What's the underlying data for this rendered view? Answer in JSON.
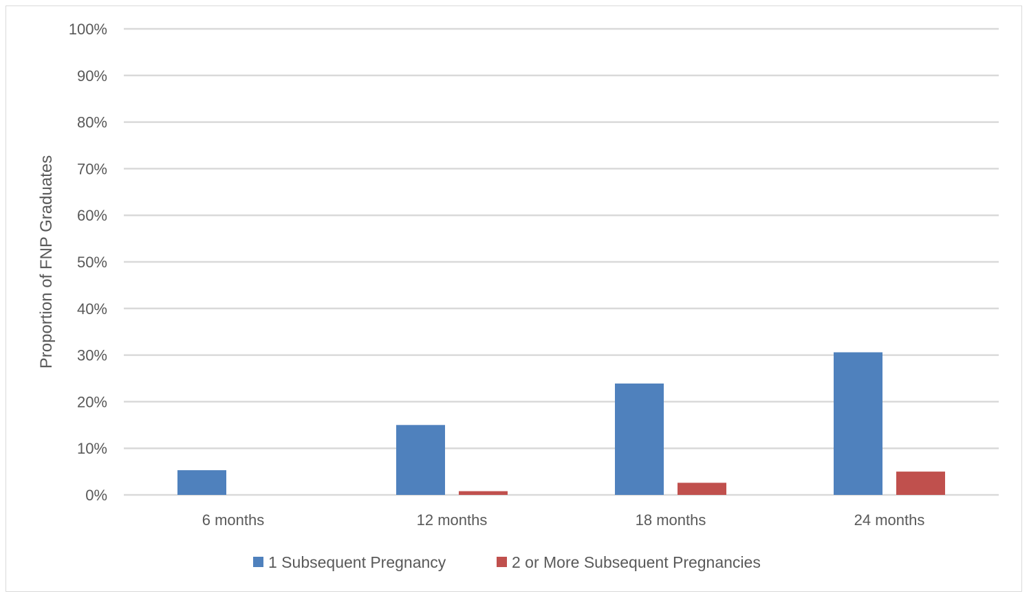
{
  "chart_data": {
    "type": "bar",
    "title": "",
    "xlabel": "",
    "ylabel": "Proportion of FNP Graduates",
    "ylim": [
      0,
      100
    ],
    "yticks": [
      "0%",
      "10%",
      "20%",
      "30%",
      "40%",
      "50%",
      "60%",
      "70%",
      "80%",
      "90%",
      "100%"
    ],
    "grid": true,
    "legend_position": "bottom",
    "categories": [
      "6 months",
      "12 months",
      "18 months",
      "24 months"
    ],
    "series": [
      {
        "name": "1 Subsequent Pregnancy",
        "color": "#4f81bd",
        "values": [
          5.3,
          15.0,
          23.9,
          30.6
        ]
      },
      {
        "name": "2 or More Subsequent Pregnancies",
        "color": "#c0504d",
        "values": [
          0,
          0.8,
          2.6,
          5.0
        ]
      }
    ]
  }
}
